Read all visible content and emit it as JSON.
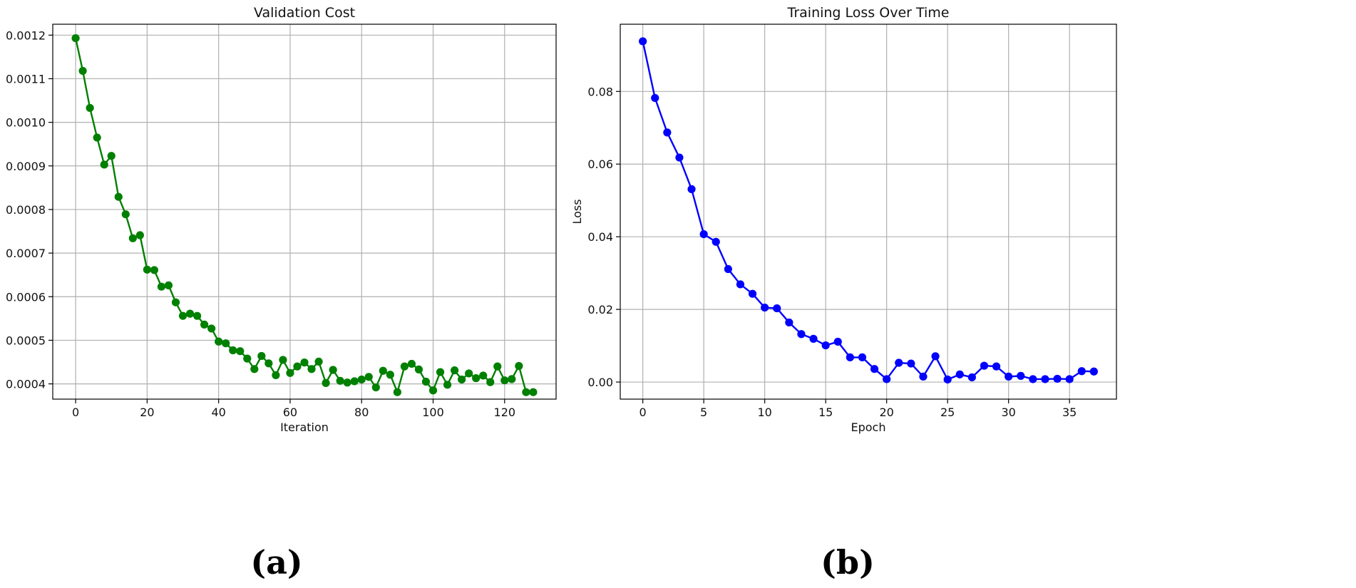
{
  "chart_data": [
    {
      "type": "line",
      "title": "Validation Cost",
      "panel_label": "(a)",
      "xlabel": "Iteration",
      "ylabel": "",
      "xlim": [
        -6.4,
        134.4
      ],
      "ylim": [
        0.000365,
        0.001225
      ],
      "xticks": [
        0,
        20,
        40,
        60,
        80,
        100,
        120
      ],
      "xtick_labels": [
        "0",
        "20",
        "40",
        "60",
        "80",
        "100",
        "120"
      ],
      "yticks": [
        0.0004,
        0.0005,
        0.0006,
        0.0007,
        0.0008,
        0.0009,
        0.001,
        0.0011,
        0.0012
      ],
      "ytick_labels": [
        "0.0004",
        "0.0005",
        "0.0006",
        "0.0007",
        "0.0008",
        "0.0009",
        "0.0010",
        "0.0011",
        "0.0012"
      ],
      "grid": true,
      "color": "#008000",
      "series": [
        {
          "x": [
            0,
            2,
            4,
            6,
            8,
            10,
            12,
            14,
            16,
            18,
            20,
            22,
            24,
            26,
            28,
            30,
            32,
            34,
            36,
            38,
            40,
            42,
            44,
            46,
            48,
            50,
            52,
            54,
            56,
            58,
            60,
            62,
            64,
            66,
            68,
            70,
            72,
            74,
            76,
            78,
            80,
            82,
            84,
            86,
            88,
            90,
            92,
            94,
            96,
            98,
            100,
            102,
            104,
            106,
            108,
            110,
            112,
            114,
            116,
            118,
            120,
            122,
            124,
            126,
            128
          ],
          "y": [
            0.001193,
            0.001118,
            0.001033,
            0.000965,
            0.000903,
            0.000923,
            0.000829,
            0.000789,
            0.000734,
            0.000741,
            0.000662,
            0.000661,
            0.000623,
            0.000626,
            0.000587,
            0.000556,
            0.000561,
            0.000556,
            0.000536,
            0.000527,
            0.000497,
            0.000493,
            0.000477,
            0.000475,
            0.000458,
            0.000434,
            0.000464,
            0.000447,
            0.00042,
            0.000455,
            0.000425,
            0.00044,
            0.000449,
            0.000434,
            0.000451,
            0.000402,
            0.000432,
            0.000407,
            0.000403,
            0.000406,
            0.00041,
            0.000416,
            0.000392,
            0.00043,
            0.000421,
            0.000381,
            0.00044,
            0.000446,
            0.000433,
            0.000405,
            0.000385,
            0.000427,
            0.000398,
            0.000431,
            0.00041,
            0.000424,
            0.000413,
            0.000419,
            0.000404,
            0.00044,
            0.000408,
            0.000411,
            0.000441,
            0.000381,
            0.000381
          ]
        }
      ]
    },
    {
      "type": "line",
      "title": "Training Loss Over Time",
      "panel_label": "(b)",
      "xlabel": "Epoch",
      "ylabel": "Loss",
      "xlim": [
        -1.85,
        38.85
      ],
      "ylim": [
        -0.0047,
        0.0985
      ],
      "xticks": [
        0,
        5,
        10,
        15,
        20,
        25,
        30,
        35
      ],
      "xtick_labels": [
        "0",
        "5",
        "10",
        "15",
        "20",
        "25",
        "30",
        "35"
      ],
      "yticks": [
        0.0,
        0.02,
        0.04,
        0.06,
        0.08
      ],
      "ytick_labels": [
        "0.00",
        "0.02",
        "0.04",
        "0.06",
        "0.08"
      ],
      "grid": true,
      "color": "#0000ff",
      "series": [
        {
          "x": [
            0,
            1,
            2,
            3,
            4,
            5,
            6,
            7,
            8,
            9,
            10,
            11,
            12,
            13,
            14,
            15,
            16,
            17,
            18,
            19,
            20,
            21,
            22,
            23,
            24,
            25,
            26,
            27,
            28,
            29,
            30,
            31,
            32,
            33,
            34,
            35,
            36,
            37
          ],
          "y": [
            0.0938,
            0.0782,
            0.0687,
            0.0618,
            0.0531,
            0.0407,
            0.0386,
            0.0311,
            0.0269,
            0.0243,
            0.0205,
            0.0203,
            0.0164,
            0.0132,
            0.0119,
            0.0101,
            0.0111,
            0.0068,
            0.0068,
            0.0036,
            0.0008,
            0.0053,
            0.0051,
            0.0015,
            0.0071,
            0.0007,
            0.0021,
            0.0013,
            0.0045,
            0.0043,
            0.0015,
            0.0017,
            0.0008,
            0.0008,
            0.0009,
            0.0008,
            0.003,
            0.0029
          ]
        }
      ]
    }
  ]
}
